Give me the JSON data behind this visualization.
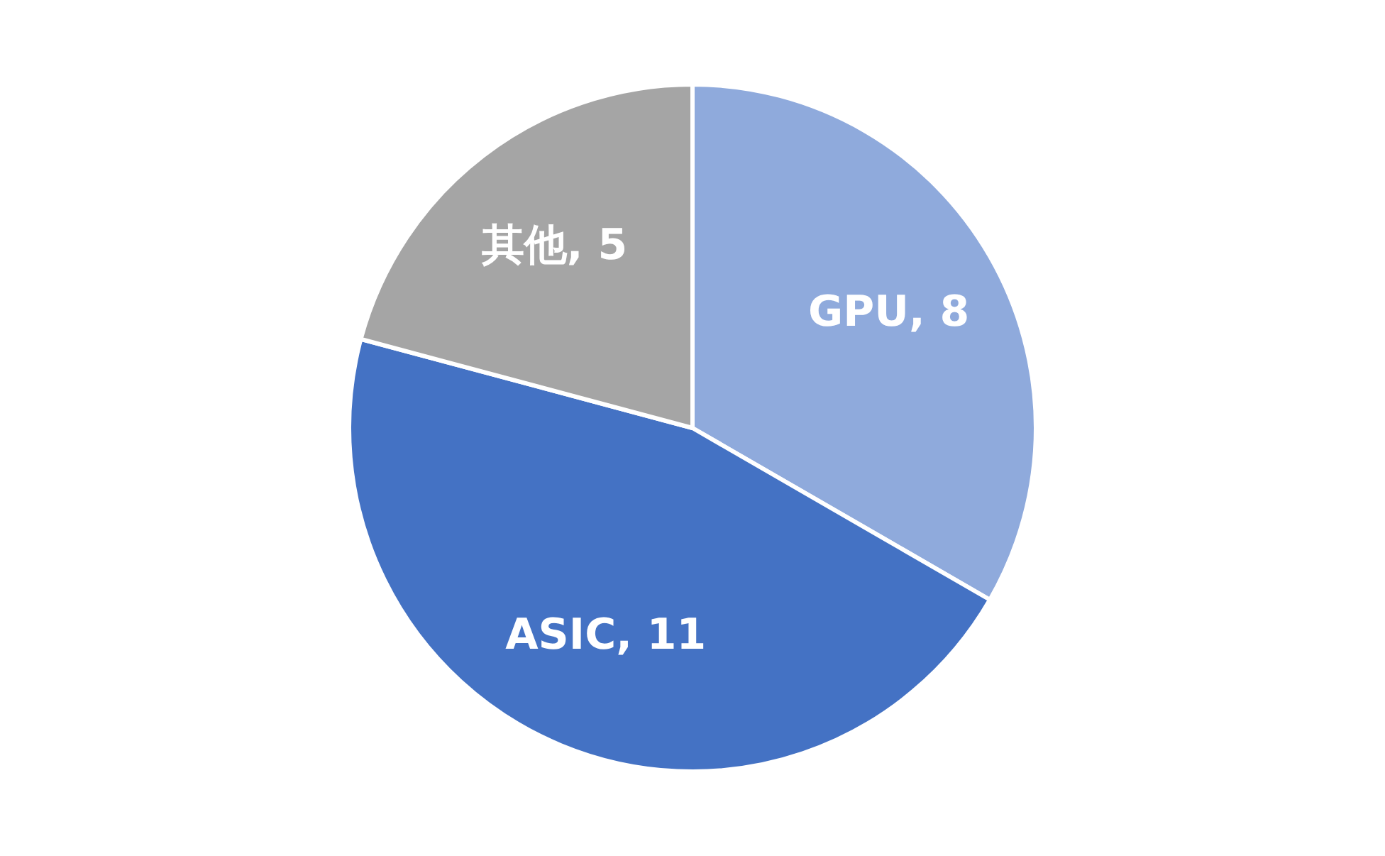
{
  "chart_data": {
    "type": "pie",
    "categories": [
      "GPU",
      "ASIC",
      "其他"
    ],
    "values": [
      8,
      11,
      5
    ],
    "value_labels": [
      ", 8",
      ", 11",
      ", 5"
    ],
    "colors": [
      "#8faadc",
      "#4472c4",
      "#a5a5a5"
    ],
    "legend": false
  }
}
